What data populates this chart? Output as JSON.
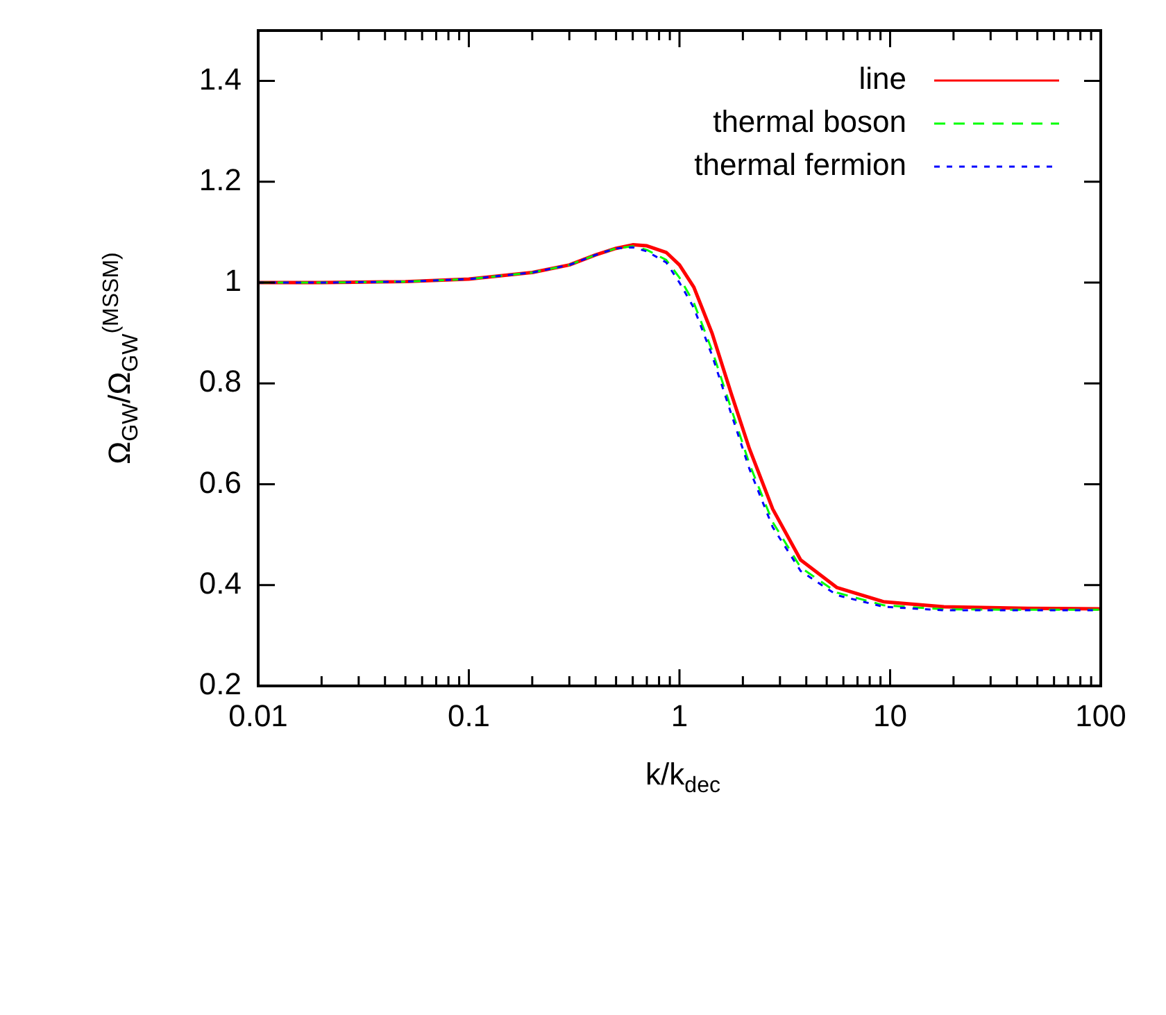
{
  "chart_data": {
    "type": "line",
    "xlabel": "k/k$_{dec}$",
    "ylabel": "Ω$_{GW}$/Ω$_{GW}$$^{(MSSM)}$",
    "x": [
      0.01,
      0.02,
      0.05,
      0.1,
      0.2,
      0.3,
      0.4,
      0.5,
      0.6,
      0.7,
      0.865,
      1.0,
      1.17,
      1.43,
      1.76,
      2.15,
      2.77,
      3.76,
      5.6,
      9.3,
      18,
      45,
      100
    ],
    "series": [
      {
        "name": "line",
        "color": "#ff0000",
        "line_style": "solid",
        "values": [
          1.0,
          1.0,
          1.002,
          1.007,
          1.02,
          1.035,
          1.055,
          1.068,
          1.075,
          1.073,
          1.06,
          1.035,
          0.991,
          0.899,
          0.78,
          0.67,
          0.551,
          0.45,
          0.395,
          0.367,
          0.357,
          0.354,
          0.353
        ]
      },
      {
        "name": "thermal boson",
        "color": "#00ff00",
        "line_style": "dashed",
        "values": [
          1.0,
          1.0,
          1.002,
          1.007,
          1.02,
          1.035,
          1.055,
          1.068,
          1.072,
          1.065,
          1.045,
          1.01,
          0.96,
          0.865,
          0.75,
          0.64,
          0.525,
          0.435,
          0.385,
          0.36,
          0.352,
          0.351,
          0.351
        ]
      },
      {
        "name": "thermal fermion",
        "color": "#0000ff",
        "line_style": "dotted",
        "values": [
          1.0,
          1.0,
          1.002,
          1.007,
          1.02,
          1.035,
          1.055,
          1.068,
          1.07,
          1.062,
          1.04,
          1.0,
          0.95,
          0.855,
          0.74,
          0.63,
          0.515,
          0.428,
          0.38,
          0.357,
          0.35,
          0.35,
          0.35
        ]
      }
    ],
    "log": "x",
    "xlim": [
      0.01,
      100
    ],
    "ylim": [
      0.2,
      1.5
    ],
    "xticks": [
      0.01,
      {
        "value": 0.02,
        "label": null
      },
      {
        "value": 0.03,
        "label": null
      },
      {
        "value": 0.04,
        "label": null
      },
      {
        "value": 0.05,
        "label": null
      },
      {
        "value": 0.06,
        "label": null
      },
      {
        "value": 0.07,
        "label": null
      },
      {
        "value": 0.08,
        "label": null
      },
      {
        "value": 0.09,
        "label": null
      },
      0.1,
      {
        "value": 0.2,
        "label": null
      },
      {
        "value": 0.3,
        "label": null
      },
      {
        "value": 0.4,
        "label": null
      },
      {
        "value": 0.5,
        "label": null
      },
      {
        "value": 0.6,
        "label": null
      },
      {
        "value": 0.7,
        "label": null
      },
      {
        "value": 0.8,
        "label": null
      },
      {
        "value": 0.9,
        "label": null
      },
      1,
      {
        "value": 2,
        "label": null
      },
      {
        "value": 3,
        "label": null
      },
      {
        "value": 4,
        "label": null
      },
      {
        "value": 5,
        "label": null
      },
      {
        "value": 6,
        "label": null
      },
      {
        "value": 7,
        "label": null
      },
      {
        "value": 8,
        "label": null
      },
      {
        "value": 9,
        "label": null
      },
      10,
      {
        "value": 20,
        "label": null
      },
      {
        "value": 30,
        "label": null
      },
      {
        "value": 40,
        "label": null
      },
      {
        "value": 50,
        "label": null
      },
      {
        "value": 60,
        "label": null
      },
      {
        "value": 70,
        "label": null
      },
      {
        "value": 80,
        "label": null
      },
      {
        "value": 90,
        "label": null
      },
      100
    ],
    "yticks": [
      0.2,
      0.4,
      0.6,
      0.8,
      1,
      1.2,
      1.4
    ],
    "legend": "top right",
    "grid": false,
    "marker": "none"
  }
}
